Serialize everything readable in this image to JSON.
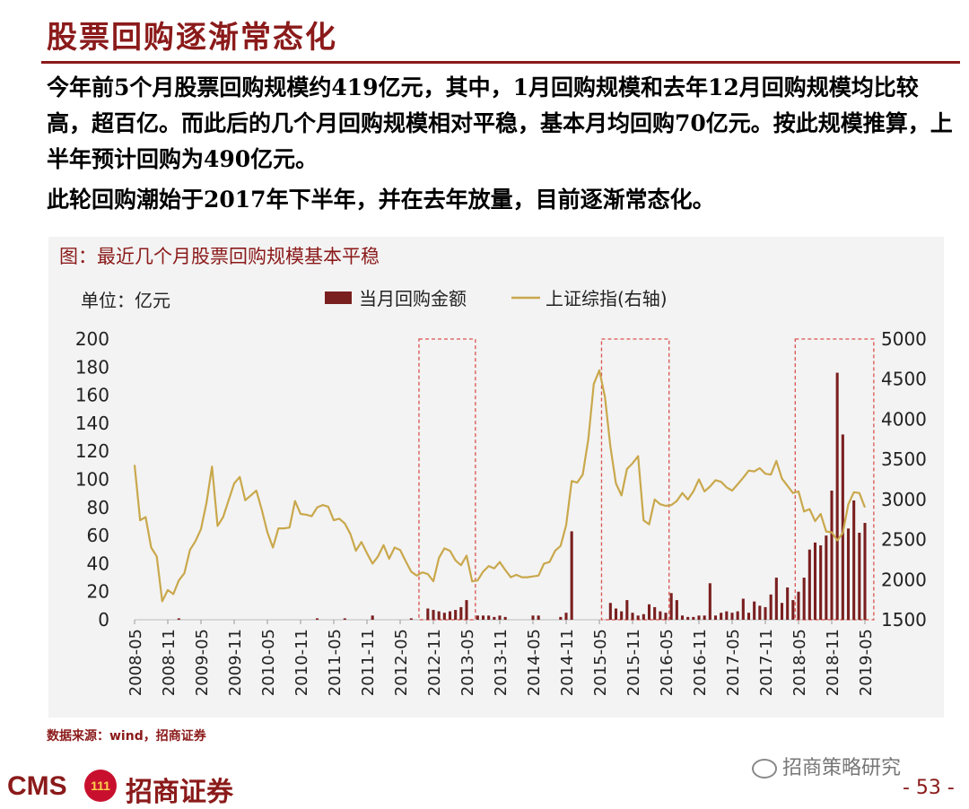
{
  "page": {
    "title": "股票回购逐渐常态化",
    "paragraph1": "今年前5个月股票回购规模约419亿元，其中，1月回购规模和去年12月回购规模均比较高，超百亿。而此后的几个月回购规模相对平稳，基本月均回购70亿元。按此规模推算，上半年预计回购为490亿元。",
    "paragraph2": "此轮回购潮始于2017年下半年，并在去年放量，目前逐渐常态化。",
    "figure_caption": "图：最近几个月股票回购规模基本平稳",
    "source": "数据来源：wind，招商证券",
    "wechat_label": "招商策略研究",
    "logo_cms": "CMS",
    "logo_mark": "111",
    "logo_name": "招商证券",
    "page_number": "- 53 -"
  },
  "chart_data": {
    "type": "bar+line",
    "unit_label": "单位：亿元",
    "legend": [
      "当月回购金额",
      "上证综指(右轴)"
    ],
    "legend_placement": "top-center",
    "colors": {
      "bar": "#7a1f1f",
      "line": "#c9a84c",
      "highlight_box": "#d9534f"
    },
    "y_left": {
      "min": 0,
      "max": 200,
      "ticks": [
        0,
        20,
        40,
        60,
        80,
        100,
        120,
        140,
        160,
        180,
        200
      ]
    },
    "y_right": {
      "min": 1500,
      "max": 5000,
      "ticks": [
        1500,
        2000,
        2500,
        3000,
        3500,
        4000,
        4500,
        5000
      ]
    },
    "x_tick_labels": [
      "2008-05",
      "2008-11",
      "2009-05",
      "2009-11",
      "2010-05",
      "2010-11",
      "2011-05",
      "2011-11",
      "2012-05",
      "2012-11",
      "2013-05",
      "2013-11",
      "2014-05",
      "2014-11",
      "2015-05",
      "2015-11",
      "2016-05",
      "2016-11",
      "2017-05",
      "2017-11",
      "2018-05",
      "2018-11",
      "2019-05"
    ],
    "start_month": "2008-05",
    "months": 133,
    "grid": false,
    "highlight_ranges": [
      [
        "2012-09",
        "2013-06"
      ],
      [
        "2015-06",
        "2016-05"
      ],
      [
        "2018-05",
        "2019-06"
      ]
    ],
    "buyback_by_month": {
      "2009-01": 1,
      "2011-02": 1,
      "2011-07": 1,
      "2011-12": 3,
      "2012-07": 1,
      "2012-10": 8,
      "2012-11": 7,
      "2012-12": 6,
      "2013-01": 5,
      "2013-02": 6,
      "2013-03": 7,
      "2013-04": 9,
      "2013-05": 14,
      "2013-07": 3,
      "2013-08": 3,
      "2013-09": 3,
      "2013-10": 2,
      "2013-11": 3,
      "2013-12": 2,
      "2014-05": 3,
      "2014-06": 3,
      "2014-10": 2,
      "2014-11": 5,
      "2014-12": 63,
      "2015-07": 12,
      "2015-08": 8,
      "2015-09": 6,
      "2015-10": 14,
      "2015-11": 5,
      "2015-12": 3,
      "2016-01": 4,
      "2016-02": 11,
      "2016-03": 9,
      "2016-04": 6,
      "2016-05": 5,
      "2016-06": 19,
      "2016-07": 14,
      "2016-08": 3,
      "2016-09": 2,
      "2016-10": 2,
      "2016-11": 3,
      "2016-12": 3,
      "2017-01": 26,
      "2017-02": 3,
      "2017-03": 5,
      "2017-04": 6,
      "2017-05": 5,
      "2017-06": 6,
      "2017-07": 15,
      "2017-08": 5,
      "2017-09": 13,
      "2017-10": 10,
      "2017-11": 9,
      "2017-12": 18,
      "2018-01": 30,
      "2018-02": 12,
      "2018-03": 23,
      "2018-04": 14,
      "2018-05": 20,
      "2018-06": 30,
      "2018-07": 50,
      "2018-08": 55,
      "2018-09": 53,
      "2018-10": 60,
      "2018-11": 92,
      "2018-12": 176,
      "2019-01": 132,
      "2019-02": 65,
      "2019-03": 85,
      "2019-04": 62,
      "2019-05": 69
    },
    "sse_index_keypoints": [
      [
        "2008-05",
        3430
      ],
      [
        "2008-06",
        2740
      ],
      [
        "2008-07",
        2780
      ],
      [
        "2008-08",
        2400
      ],
      [
        "2008-09",
        2290
      ],
      [
        "2008-10",
        1730
      ],
      [
        "2008-11",
        1870
      ],
      [
        "2008-12",
        1820
      ],
      [
        "2009-01",
        1990
      ],
      [
        "2009-02",
        2080
      ],
      [
        "2009-03",
        2370
      ],
      [
        "2009-04",
        2480
      ],
      [
        "2009-05",
        2630
      ],
      [
        "2009-06",
        2960
      ],
      [
        "2009-07",
        3410
      ],
      [
        "2009-08",
        2670
      ],
      [
        "2009-09",
        2780
      ],
      [
        "2009-10",
        2990
      ],
      [
        "2009-11",
        3200
      ],
      [
        "2009-12",
        3280
      ],
      [
        "2010-01",
        2990
      ],
      [
        "2010-02",
        3050
      ],
      [
        "2010-03",
        3110
      ],
      [
        "2010-04",
        2870
      ],
      [
        "2010-05",
        2590
      ],
      [
        "2010-06",
        2400
      ],
      [
        "2010-07",
        2640
      ],
      [
        "2010-08",
        2640
      ],
      [
        "2010-09",
        2650
      ],
      [
        "2010-10",
        2980
      ],
      [
        "2010-11",
        2820
      ],
      [
        "2010-12",
        2810
      ],
      [
        "2011-01",
        2790
      ],
      [
        "2011-02",
        2900
      ],
      [
        "2011-03",
        2930
      ],
      [
        "2011-04",
        2910
      ],
      [
        "2011-05",
        2740
      ],
      [
        "2011-06",
        2760
      ],
      [
        "2011-07",
        2700
      ],
      [
        "2011-08",
        2570
      ],
      [
        "2011-09",
        2360
      ],
      [
        "2011-10",
        2470
      ],
      [
        "2011-11",
        2330
      ],
      [
        "2011-12",
        2200
      ],
      [
        "2012-01",
        2290
      ],
      [
        "2012-02",
        2430
      ],
      [
        "2012-03",
        2260
      ],
      [
        "2012-04",
        2400
      ],
      [
        "2012-05",
        2370
      ],
      [
        "2012-06",
        2230
      ],
      [
        "2012-07",
        2100
      ],
      [
        "2012-08",
        2050
      ],
      [
        "2012-09",
        2090
      ],
      [
        "2012-10",
        2070
      ],
      [
        "2012-11",
        1980
      ],
      [
        "2012-12",
        2270
      ],
      [
        "2013-01",
        2390
      ],
      [
        "2013-02",
        2360
      ],
      [
        "2013-03",
        2240
      ],
      [
        "2013-04",
        2180
      ],
      [
        "2013-05",
        2300
      ],
      [
        "2013-06",
        1980
      ],
      [
        "2013-07",
        1990
      ],
      [
        "2013-08",
        2100
      ],
      [
        "2013-09",
        2170
      ],
      [
        "2013-10",
        2140
      ],
      [
        "2013-11",
        2220
      ],
      [
        "2013-12",
        2120
      ],
      [
        "2014-01",
        2030
      ],
      [
        "2014-02",
        2060
      ],
      [
        "2014-03",
        2030
      ],
      [
        "2014-04",
        2030
      ],
      [
        "2014-05",
        2040
      ],
      [
        "2014-06",
        2050
      ],
      [
        "2014-07",
        2200
      ],
      [
        "2014-08",
        2220
      ],
      [
        "2014-09",
        2360
      ],
      [
        "2014-10",
        2420
      ],
      [
        "2014-11",
        2680
      ],
      [
        "2014-12",
        3230
      ],
      [
        "2015-01",
        3210
      ],
      [
        "2015-02",
        3310
      ],
      [
        "2015-03",
        3750
      ],
      [
        "2015-04",
        4440
      ],
      [
        "2015-05",
        4610
      ],
      [
        "2015-06",
        4280
      ],
      [
        "2015-07",
        3660
      ],
      [
        "2015-08",
        3200
      ],
      [
        "2015-09",
        3050
      ],
      [
        "2015-10",
        3380
      ],
      [
        "2015-11",
        3450
      ],
      [
        "2015-12",
        3540
      ],
      [
        "2016-01",
        2740
      ],
      [
        "2016-02",
        2690
      ],
      [
        "2016-03",
        3000
      ],
      [
        "2016-04",
        2940
      ],
      [
        "2016-05",
        2920
      ],
      [
        "2016-06",
        2930
      ],
      [
        "2016-07",
        2980
      ],
      [
        "2016-08",
        3080
      ],
      [
        "2016-09",
        3000
      ],
      [
        "2016-10",
        3100
      ],
      [
        "2016-11",
        3250
      ],
      [
        "2016-12",
        3100
      ],
      [
        "2017-01",
        3160
      ],
      [
        "2017-02",
        3240
      ],
      [
        "2017-03",
        3220
      ],
      [
        "2017-04",
        3150
      ],
      [
        "2017-05",
        3110
      ],
      [
        "2017-06",
        3190
      ],
      [
        "2017-07",
        3270
      ],
      [
        "2017-08",
        3360
      ],
      [
        "2017-09",
        3350
      ],
      [
        "2017-10",
        3390
      ],
      [
        "2017-11",
        3320
      ],
      [
        "2017-12",
        3310
      ],
      [
        "2018-01",
        3480
      ],
      [
        "2018-02",
        3260
      ],
      [
        "2018-03",
        3170
      ],
      [
        "2018-04",
        3080
      ],
      [
        "2018-05",
        3100
      ],
      [
        "2018-06",
        2850
      ],
      [
        "2018-07",
        2880
      ],
      [
        "2018-08",
        2730
      ],
      [
        "2018-09",
        2820
      ],
      [
        "2018-10",
        2600
      ],
      [
        "2018-11",
        2590
      ],
      [
        "2018-12",
        2490
      ],
      [
        "2019-01",
        2580
      ],
      [
        "2019-02",
        2940
      ],
      [
        "2019-03",
        3090
      ],
      [
        "2019-04",
        3080
      ],
      [
        "2019-05",
        2900
      ]
    ]
  }
}
